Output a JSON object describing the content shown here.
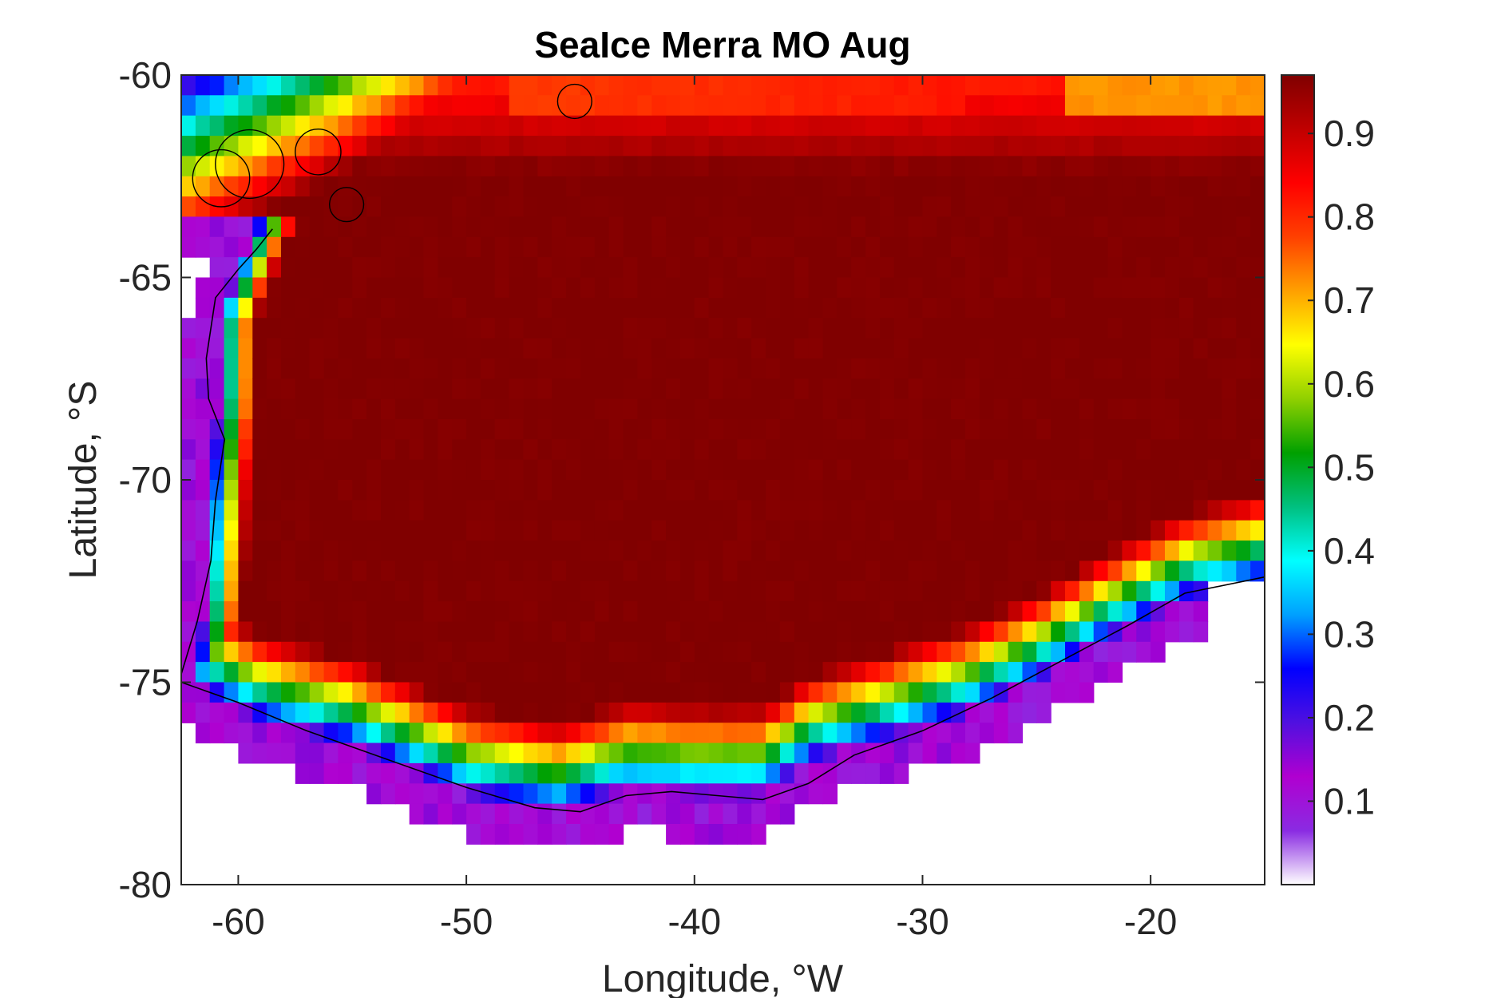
{
  "chart_data": {
    "type": "heatmap",
    "title": "SeaIce Merra MO Aug",
    "xlabel": "Longitude, °W",
    "ylabel": "Latitude, °S",
    "xlim": [
      -62.5,
      -15
    ],
    "ylim": [
      -80,
      -60
    ],
    "xticks": [
      -60,
      -50,
      -40,
      -30,
      -20
    ],
    "yticks": [
      -60,
      -65,
      -70,
      -75,
      -80
    ],
    "colorbar": {
      "ticks": [
        0.1,
        0.2,
        0.3,
        0.4,
        0.5,
        0.6,
        0.7,
        0.8,
        0.9
      ],
      "range": [
        0.0,
        0.97
      ],
      "colormap": [
        "#ffffff",
        "#8a2be2",
        "#b000d0",
        "#5010e0",
        "#0000ff",
        "#00a0ff",
        "#00ffff",
        "#00c080",
        "#00a000",
        "#90d000",
        "#ffff00",
        "#ffa000",
        "#ff4000",
        "#ff0000",
        "#c00000",
        "#800000"
      ]
    },
    "grid": false,
    "description_fields": {
      "grid_dx": 0.625,
      "grid_dy": 0.5
    }
  }
}
